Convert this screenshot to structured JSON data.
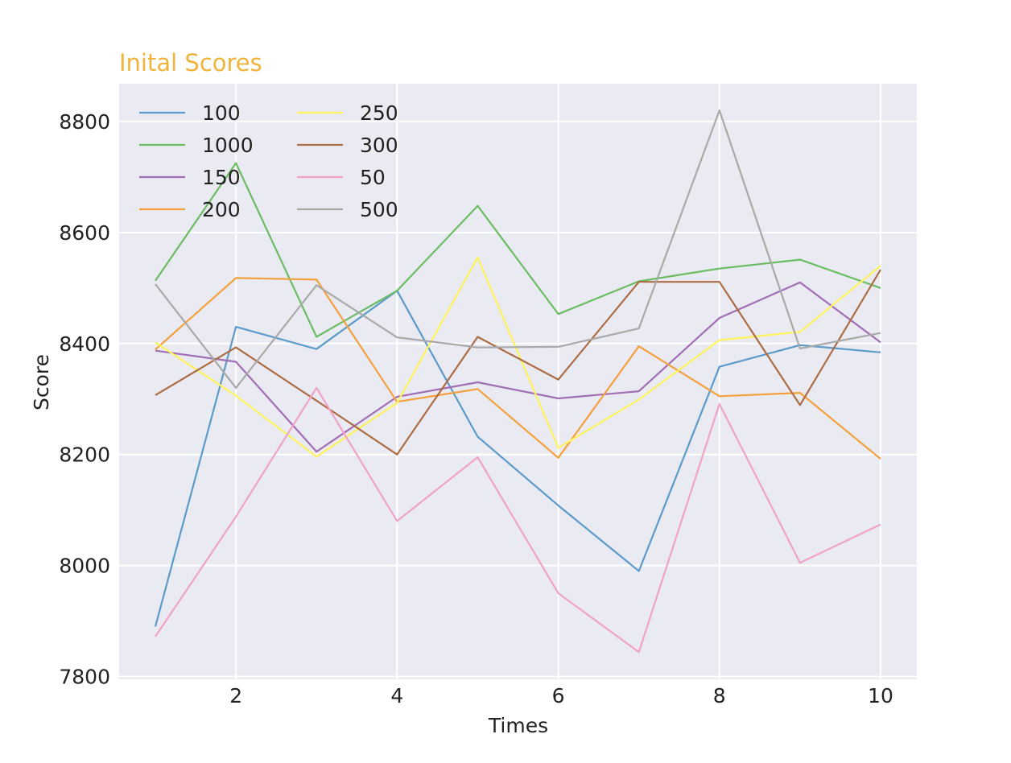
{
  "chart_data": {
    "type": "line",
    "title": "Inital Scores",
    "title_color": "#f0b43c",
    "xlabel": "Times",
    "ylabel": "Score",
    "xlim": [
      0.55,
      10.45
    ],
    "ylim": [
      7795,
      8868
    ],
    "x_ticks": [
      2,
      4,
      6,
      8,
      10
    ],
    "y_ticks": [
      7800,
      8000,
      8200,
      8400,
      8600,
      8800
    ],
    "grid": true,
    "legend_position": "top-left",
    "legend_columns": 2,
    "x": [
      1,
      2,
      3,
      4,
      5,
      6,
      7,
      8,
      9,
      10
    ],
    "series": [
      {
        "name": "100",
        "color": "#5b9ac9",
        "values": [
          7890,
          8430,
          8390,
          8495,
          8232,
          8108,
          7990,
          8358,
          8397,
          8384
        ]
      },
      {
        "name": "1000",
        "color": "#6cbc64",
        "values": [
          8513,
          8725,
          8412,
          8495,
          8648,
          8453,
          8512,
          8535,
          8551,
          8500
        ]
      },
      {
        "name": "150",
        "color": "#a16eb5",
        "values": [
          8387,
          8367,
          8205,
          8304,
          8330,
          8301,
          8314,
          8446,
          8510,
          8402
        ]
      },
      {
        "name": "200",
        "color": "#f4a03c",
        "values": [
          8389,
          8518,
          8515,
          8295,
          8318,
          8194,
          8395,
          8305,
          8311,
          8192
        ]
      },
      {
        "name": "250",
        "color": "#fff35c",
        "values": [
          8402,
          8306,
          8196,
          8293,
          8555,
          8212,
          8299,
          8406,
          8421,
          8540
        ]
      },
      {
        "name": "300",
        "color": "#ac6c44",
        "values": [
          8307,
          8393,
          8297,
          8200,
          8412,
          8335,
          8511,
          8511,
          8289,
          8533
        ]
      },
      {
        "name": "50",
        "color": "#f0a2c9",
        "values": [
          7872,
          8088,
          8320,
          8080,
          8195,
          7950,
          7844,
          8291,
          8005,
          8074
        ]
      },
      {
        "name": "500",
        "color": "#a9a9a9",
        "values": [
          8507,
          8320,
          8505,
          8411,
          8393,
          8394,
          8427,
          8820,
          8391,
          8419
        ]
      }
    ]
  }
}
